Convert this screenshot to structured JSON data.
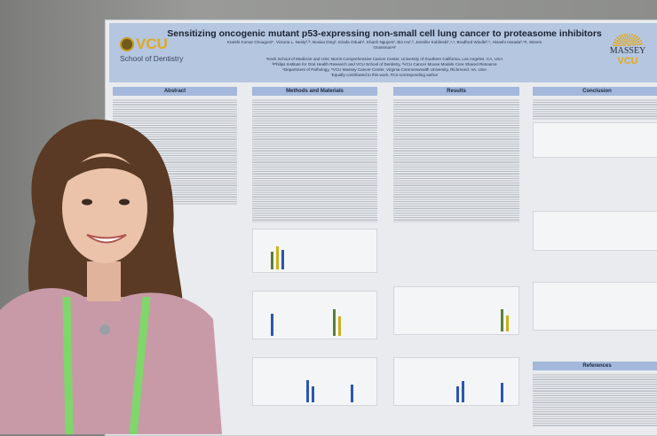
{
  "poster": {
    "title": "Sensitizing oncogenic mutant p53-expressing non-small cell lung cancer to proteasome inhibitors",
    "authors": "Kranthi Kumar Chougoni¹', Victoria L. Neely²,³', Boxiao Ding², Eziafa Oduah², Khanh Nguyen², Bin Hu²,³, Jennifer Koblinski²,⁴,⁵, Bradford Windle²,⁵, Hisashi Harada²,⁵#, Steven Grossman¹#",
    "affiliations": [
      "¹Keck School of Medicine and USC Norris Comprehensive Cancer Center, University of Southern California, Los Angeles, CA, USA",
      "²Philips Institute for Oral Health Research and VCU School of Dentistry, ³VCU Cancer Mouse Models Core Shared Resource",
      "⁴Department of Pathology, ⁵VCU Massey Cancer Center, Virginia Commonwealth University, Richmond, VA, USA",
      "'Equally contributed to this work, #Co-corresponding author"
    ],
    "logo_left": {
      "name": "VCU",
      "sub": "School of Dentistry"
    },
    "logo_right": {
      "name": "MASSEY",
      "sub": "VCU"
    },
    "sections": [
      "Abstract",
      "Methods and Materials",
      "Results",
      "Conclusion",
      "References"
    ],
    "colors": {
      "header": "#b5c6e0",
      "section_bar": "#a3b8da",
      "vcu_gold": "#e1a91b"
    }
  }
}
